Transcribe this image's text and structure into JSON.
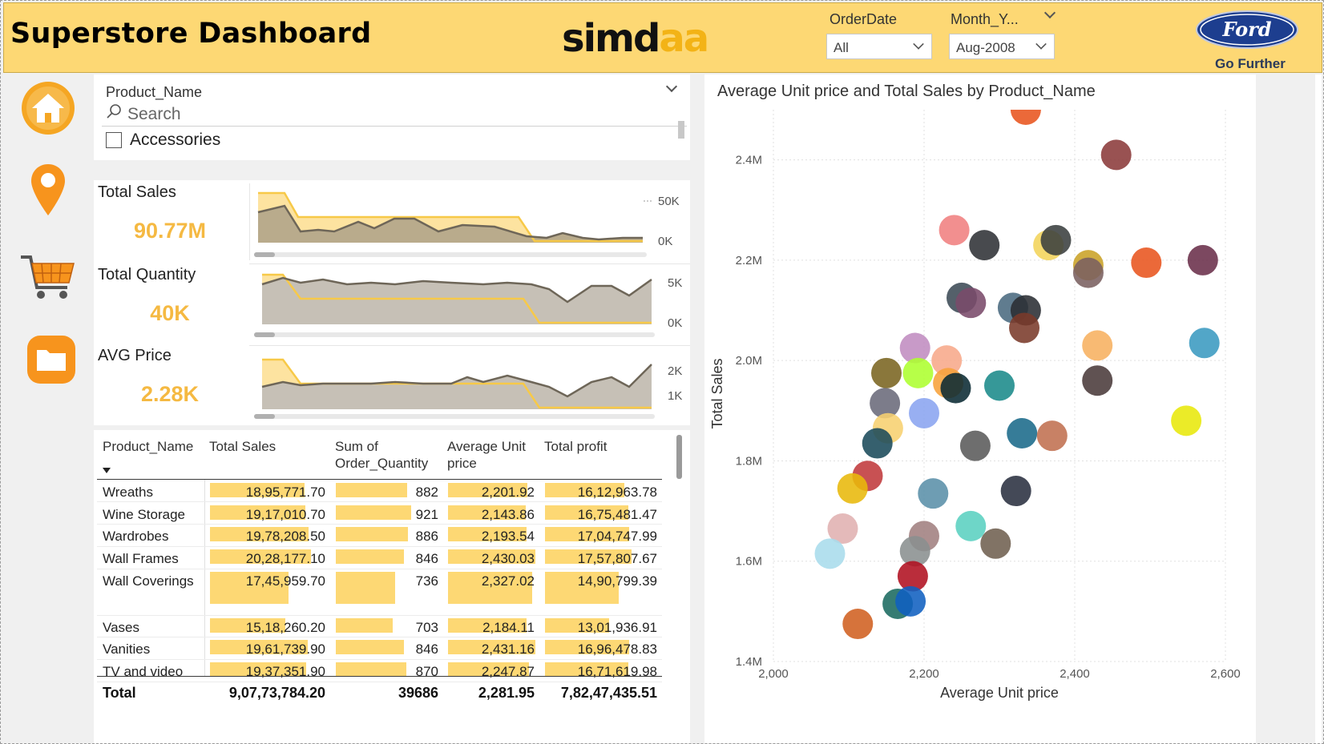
{
  "header": {
    "title": "Superstore Dashboard",
    "logo_left": "simd",
    "logo_right": "aa",
    "orderdate_label": "OrderDate",
    "orderdate_value": "All",
    "month_label": "Month_Y...",
    "month_value": "Aug-2008",
    "brand_text": "Ford",
    "brand_tagline": "Go Further"
  },
  "nav": {
    "items": [
      "home-icon",
      "location-pin-icon",
      "shopping-cart-icon",
      "folder-icon"
    ],
    "colors": {
      "accent": "#f5a623",
      "orange": "#f7941d"
    }
  },
  "product_slicer": {
    "title": "Product_Name",
    "search_placeholder": "Search",
    "first_item": "Accessories"
  },
  "kpis": [
    {
      "label": "Total Sales",
      "value": "90.77M",
      "axis_top": "50K",
      "axis_bottom": "0K"
    },
    {
      "label": "Total Quantity",
      "value": "40K",
      "axis_top": "5K",
      "axis_bottom": "0K"
    },
    {
      "label": "AVG Price",
      "value": "2.28K",
      "axis_top": "2K",
      "axis_bottom": "1K"
    }
  ],
  "table": {
    "columns": [
      "Product_Name",
      "Total Sales",
      "Sum of Order_Quantity",
      "Average Unit price",
      "Total profit"
    ],
    "rows": [
      {
        "name": "Wreaths",
        "sales": "18,95,771.70",
        "qty": "882",
        "price": "2,201.92",
        "profit": "16,12,963.78"
      },
      {
        "name": "Wine Storage",
        "sales": "19,17,010.70",
        "qty": "921",
        "price": "2,143.86",
        "profit": "16,75,481.47"
      },
      {
        "name": "Wardrobes",
        "sales": "19,78,208.50",
        "qty": "886",
        "price": "2,193.54",
        "profit": "17,04,747.99"
      },
      {
        "name": "Wall Frames",
        "sales": "20,28,177.10",
        "qty": "846",
        "price": "2,430.03",
        "profit": "17,57,807.67"
      },
      {
        "name": "Wall Coverings",
        "sales": "17,45,959.70",
        "qty": "736",
        "price": "2,327.02",
        "profit": "14,90,799.39"
      },
      {
        "name": "Vases",
        "sales": "15,18,260.20",
        "qty": "703",
        "price": "2,184.11",
        "profit": "13,01,936.91"
      },
      {
        "name": "Vanities",
        "sales": "19,61,739.90",
        "qty": "846",
        "price": "2,431.16",
        "profit": "16,96,478.83"
      },
      {
        "name": "TV and video",
        "sales": "19,37,351.90",
        "qty": "870",
        "price": "2,247.87",
        "profit": "16,71,619.98"
      }
    ],
    "totals": {
      "label": "Total",
      "sales": "9,07,73,784.20",
      "qty": "39686",
      "price": "2,281.95",
      "profit": "7,82,47,435.51"
    },
    "bar_fractions": {
      "sales": [
        0.84,
        0.85,
        0.88,
        0.9,
        0.7,
        0.67,
        0.87,
        0.86
      ],
      "qty": [
        0.74,
        0.78,
        0.75,
        0.71,
        0.62,
        0.59,
        0.71,
        0.73
      ],
      "price": [
        0.9,
        0.88,
        0.89,
        0.99,
        0.95,
        0.89,
        0.99,
        0.92
      ],
      "profit": [
        0.71,
        0.74,
        0.75,
        0.77,
        0.66,
        0.57,
        0.75,
        0.74
      ]
    }
  },
  "chart_data": {
    "type": "scatter",
    "title": "Average Unit price and Total Sales by Product_Name",
    "xlabel": "Average Unit price",
    "ylabel": "Total Sales",
    "xlim": [
      2000,
      2600
    ],
    "ylim": [
      1400000,
      2500000
    ],
    "x_ticks": [
      "2,000",
      "2,200",
      "2,400",
      "2,600"
    ],
    "y_ticks": [
      "1.4M",
      "1.6M",
      "1.8M",
      "2.0M",
      "2.2M",
      "2.4M"
    ],
    "grid": true,
    "points": [
      {
        "x": 2335,
        "y": 2500000,
        "color": "#e8541e"
      },
      {
        "x": 2455,
        "y": 2410000,
        "color": "#8b3a3a"
      },
      {
        "x": 2240,
        "y": 2260000,
        "color": "#f08080"
      },
      {
        "x": 2280,
        "y": 2230000,
        "color": "#2f3136"
      },
      {
        "x": 2365,
        "y": 2230000,
        "color": "#f3d45a"
      },
      {
        "x": 2375,
        "y": 2240000,
        "color": "#3a3f3f"
      },
      {
        "x": 2418,
        "y": 2190000,
        "color": "#c9a227"
      },
      {
        "x": 2418,
        "y": 2175000,
        "color": "#7a6060"
      },
      {
        "x": 2495,
        "y": 2195000,
        "color": "#e8541e"
      },
      {
        "x": 2570,
        "y": 2200000,
        "color": "#6a2f4a"
      },
      {
        "x": 2250,
        "y": 2125000,
        "color": "#3c4a55"
      },
      {
        "x": 2262,
        "y": 2115000,
        "color": "#7a4a6a"
      },
      {
        "x": 2318,
        "y": 2105000,
        "color": "#4a6a80"
      },
      {
        "x": 2335,
        "y": 2100000,
        "color": "#2a2e33"
      },
      {
        "x": 2333,
        "y": 2065000,
        "color": "#7a3a2a"
      },
      {
        "x": 2188,
        "y": 2025000,
        "color": "#c08cc0"
      },
      {
        "x": 2230,
        "y": 2000000,
        "color": "#f7a88a"
      },
      {
        "x": 2150,
        "y": 1975000,
        "color": "#7a6420"
      },
      {
        "x": 2192,
        "y": 1975000,
        "color": "#adff2f"
      },
      {
        "x": 2232,
        "y": 1955000,
        "color": "#f7a23a"
      },
      {
        "x": 2242,
        "y": 1945000,
        "color": "#0a2a33"
      },
      {
        "x": 2300,
        "y": 1950000,
        "color": "#1a8a8a"
      },
      {
        "x": 2430,
        "y": 2030000,
        "color": "#f7b060"
      },
      {
        "x": 2572,
        "y": 2035000,
        "color": "#3a9ac0"
      },
      {
        "x": 2430,
        "y": 1960000,
        "color": "#4a3a3a"
      },
      {
        "x": 2148,
        "y": 1915000,
        "color": "#6a6a7a"
      },
      {
        "x": 2200,
        "y": 1895000,
        "color": "#8aa4f0"
      },
      {
        "x": 2152,
        "y": 1865000,
        "color": "#f7d070"
      },
      {
        "x": 2138,
        "y": 1835000,
        "color": "#1a4a5a"
      },
      {
        "x": 2330,
        "y": 1855000,
        "color": "#1a6a8a"
      },
      {
        "x": 2370,
        "y": 1850000,
        "color": "#c07050"
      },
      {
        "x": 2268,
        "y": 1830000,
        "color": "#5a5a5a"
      },
      {
        "x": 2548,
        "y": 1880000,
        "color": "#e8e80a"
      },
      {
        "x": 2125,
        "y": 1770000,
        "color": "#c0393b"
      },
      {
        "x": 2105,
        "y": 1745000,
        "color": "#e8b80a"
      },
      {
        "x": 2212,
        "y": 1735000,
        "color": "#5a90a8"
      },
      {
        "x": 2322,
        "y": 1740000,
        "color": "#2a3040"
      },
      {
        "x": 2092,
        "y": 1665000,
        "color": "#e0b0b0"
      },
      {
        "x": 2200,
        "y": 1650000,
        "color": "#a08080"
      },
      {
        "x": 2262,
        "y": 1670000,
        "color": "#5ad0c0"
      },
      {
        "x": 2295,
        "y": 1635000,
        "color": "#706050"
      },
      {
        "x": 2075,
        "y": 1615000,
        "color": "#a8dcec"
      },
      {
        "x": 2188,
        "y": 1620000,
        "color": "#8a9090"
      },
      {
        "x": 2185,
        "y": 1570000,
        "color": "#b01020"
      },
      {
        "x": 2165,
        "y": 1515000,
        "color": "#1a6a60"
      },
      {
        "x": 2182,
        "y": 1520000,
        "color": "#1060c0"
      },
      {
        "x": 2112,
        "y": 1475000,
        "color": "#d06020"
      }
    ]
  }
}
